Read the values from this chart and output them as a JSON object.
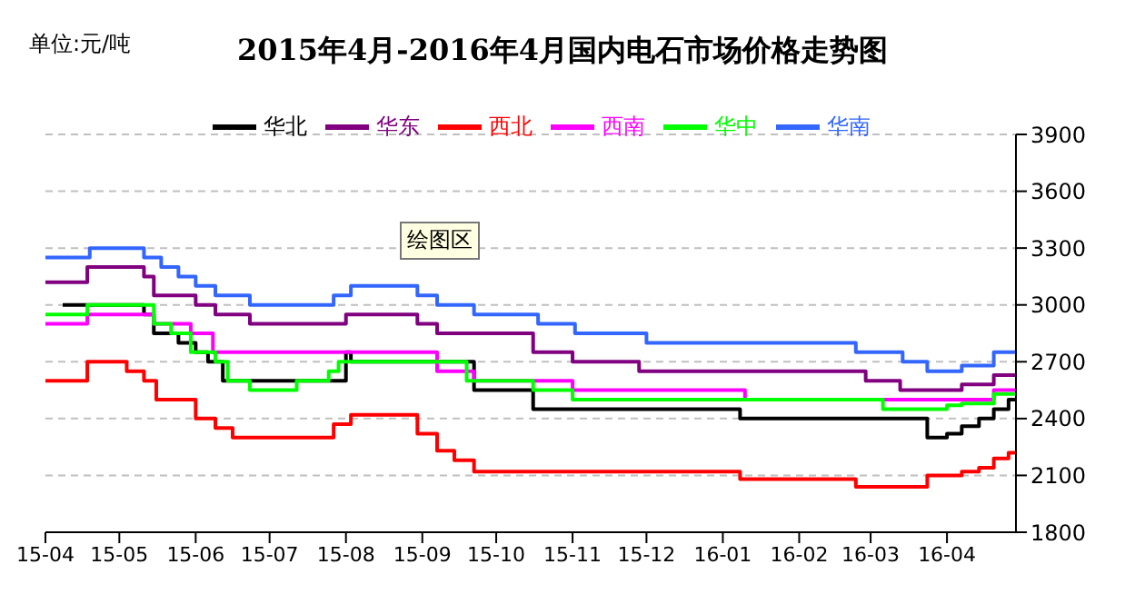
{
  "chart_data": {
    "type": "step",
    "title": "2015年4月-2016年4月国内电石市场价格走势图",
    "ylabel": "单位:元/吨",
    "annotations": [
      "绘图区"
    ],
    "xlim": [
      "2015-04-01",
      "2016-04-29"
    ],
    "xticks": [
      {
        "value": "2015-04-01",
        "label": "15-04"
      },
      {
        "value": "2015-05-01",
        "label": "15-05"
      },
      {
        "value": "2015-06-01",
        "label": "15-06"
      },
      {
        "value": "2015-07-01",
        "label": "15-07"
      },
      {
        "value": "2015-08-01",
        "label": "15-08"
      },
      {
        "value": "2015-09-01",
        "label": "15-09"
      },
      {
        "value": "2015-10-01",
        "label": "15-10"
      },
      {
        "value": "2015-11-01",
        "label": "15-11"
      },
      {
        "value": "2015-12-01",
        "label": "15-12"
      },
      {
        "value": "2016-01-01",
        "label": "16-01"
      },
      {
        "value": "2016-02-01",
        "label": "16-02"
      },
      {
        "value": "2016-03-01",
        "label": "16-03"
      },
      {
        "value": "2016-04-01",
        "label": "16-04"
      }
    ],
    "ylim": [
      1800,
      3900
    ],
    "yticks": [
      1800,
      2100,
      2400,
      2700,
      3000,
      3300,
      3600,
      3900
    ],
    "grid": "y",
    "legend": "top",
    "marker": "none",
    "line_style": "solid",
    "series": [
      {
        "name": "华北",
        "color": "#000000",
        "x": [
          "2015-04-08",
          "2015-05-11",
          "2015-05-15",
          "2015-05-25",
          "2015-06-01",
          "2015-06-06",
          "2015-06-12",
          "2015-08-01",
          "2015-08-03",
          "2015-09-22",
          "2015-10-16",
          "2016-01-08",
          "2016-03-24",
          "2016-04-01",
          "2016-04-07",
          "2016-04-14",
          "2016-04-20",
          "2016-04-26",
          "2016-04-29"
        ],
        "values": [
          3000,
          2950,
          2850,
          2800,
          2750,
          2700,
          2600,
          2750,
          2700,
          2550,
          2450,
          2400,
          2300,
          2320,
          2360,
          2400,
          2450,
          2500,
          2500
        ]
      },
      {
        "name": "华东",
        "color": "#800080",
        "x": [
          "2015-04-01",
          "2015-04-18",
          "2015-05-11",
          "2015-05-15",
          "2015-06-01",
          "2015-06-09",
          "2015-06-23",
          "2015-08-01",
          "2015-08-30",
          "2015-09-07",
          "2015-10-16",
          "2015-11-01",
          "2015-11-28",
          "2016-02-28",
          "2016-03-13",
          "2016-04-07",
          "2016-04-20",
          "2016-04-29"
        ],
        "values": [
          3120,
          3200,
          3150,
          3050,
          3000,
          2950,
          2900,
          2950,
          2900,
          2850,
          2750,
          2700,
          2650,
          2600,
          2550,
          2580,
          2630,
          2630
        ]
      },
      {
        "name": "西北",
        "color": "#ff0000",
        "x": [
          "2015-04-01",
          "2015-04-18",
          "2015-05-04",
          "2015-05-11",
          "2015-05-16",
          "2015-06-01",
          "2015-06-09",
          "2015-06-16",
          "2015-07-27",
          "2015-08-03",
          "2015-08-30",
          "2015-09-07",
          "2015-09-14",
          "2015-09-22",
          "2016-01-08",
          "2016-02-24",
          "2016-03-24",
          "2016-04-07",
          "2016-04-14",
          "2016-04-20",
          "2016-04-26",
          "2016-04-29"
        ],
        "values": [
          2600,
          2700,
          2650,
          2600,
          2500,
          2400,
          2350,
          2300,
          2370,
          2420,
          2320,
          2230,
          2180,
          2120,
          2080,
          2040,
          2100,
          2120,
          2140,
          2190,
          2220,
          2220
        ]
      },
      {
        "name": "西南",
        "color": "#ff00ff",
        "x": [
          "2015-04-01",
          "2015-04-18",
          "2015-05-15",
          "2015-05-30",
          "2015-06-08",
          "2015-09-07",
          "2015-09-22",
          "2015-11-01",
          "2016-01-10",
          "2016-04-20",
          "2016-04-29"
        ],
        "values": [
          2900,
          2950,
          2900,
          2850,
          2750,
          2650,
          2600,
          2550,
          2500,
          2550,
          2550
        ]
      },
      {
        "name": "华中",
        "color": "#00ff00",
        "x": [
          "2015-04-01",
          "2015-04-18",
          "2015-05-15",
          "2015-05-22",
          "2015-05-30",
          "2015-06-09",
          "2015-06-14",
          "2015-06-23",
          "2015-07-12",
          "2015-07-25",
          "2015-07-29",
          "2015-09-19",
          "2015-10-16",
          "2015-11-01",
          "2016-03-06",
          "2016-04-01",
          "2016-04-07",
          "2016-04-20",
          "2016-04-29"
        ],
        "values": [
          2950,
          3000,
          2900,
          2850,
          2750,
          2700,
          2600,
          2550,
          2600,
          2650,
          2700,
          2600,
          2550,
          2500,
          2450,
          2470,
          2480,
          2530,
          2530
        ]
      },
      {
        "name": "华南",
        "color": "#3366ff",
        "x": [
          "2015-04-01",
          "2015-04-19",
          "2015-05-11",
          "2015-05-18",
          "2015-05-25",
          "2015-06-01",
          "2015-06-09",
          "2015-06-23",
          "2015-07-27",
          "2015-08-03",
          "2015-08-30",
          "2015-09-07",
          "2015-09-22",
          "2015-10-18",
          "2015-11-02",
          "2015-12-01",
          "2016-02-24",
          "2016-03-14",
          "2016-03-24",
          "2016-04-07",
          "2016-04-20",
          "2016-04-29"
        ],
        "values": [
          3250,
          3300,
          3250,
          3200,
          3150,
          3100,
          3050,
          3000,
          3050,
          3100,
          3050,
          3000,
          2950,
          2900,
          2850,
          2800,
          2750,
          2700,
          2650,
          2680,
          2750,
          2750
        ]
      }
    ]
  }
}
